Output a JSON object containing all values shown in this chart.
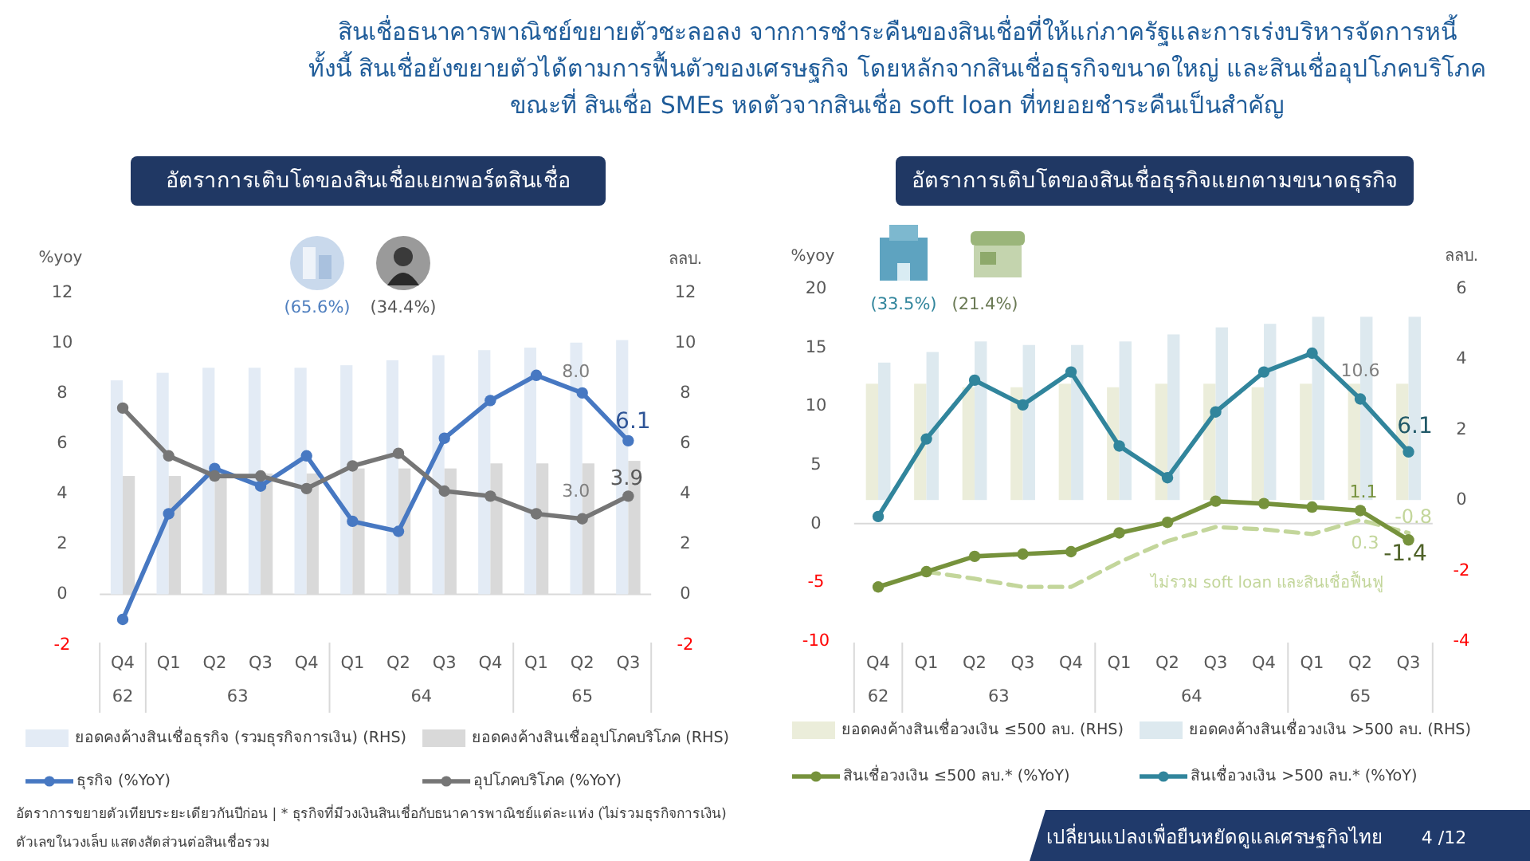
{
  "chart_data": [
    {
      "type": "other",
      "title": "สินเชื่อธนาคารพาณิชย์ขยายตัวชะลอลง จากการชำระคืนของสินเชื่อที่ให้แก่ภาครัฐและการเร่งบริหารจัดการหนี้\nทั้งนี้ สินเชื่อยังขยายตัวได้ตามการฟื้นตัวของเศรษฐกิจ โดยหลักจากสินเชื่อธุรกิจขนาดใหญ่ และสินเชื่ออุปโภคบริโภค\nขณะที่ สินเชื่อ SMEs หดตัวจากสินเชื่อ soft loan ที่ทยอยชำระคืนเป็นสำคัญ",
      "annotations": [
        "อัตราการขยายตัวเทียบระยะเดียวกันปีก่อน | * ธุรกิจที่มีวงเงินสินเชื่อกับธนาคารพาณิชย์แต่ละแห่ง (ไม่รวมธุรกิจการเงิน)",
        "ตัวเลขในวงเล็บ แสดงสัดส่วนต่อสินเชื่อรวม",
        "เปลี่ยนแปลงเพื่อยืนหยัดดูแลเศรษฐกิจไทย",
        "4 /12"
      ]
    },
    {
      "type": "line",
      "title": "อัตราการเติบโตของสินเชื่อแยกพอร์ตสินเชื่อ",
      "ylabel": "%yoy",
      "y2label": "ลลบ.",
      "categories": [
        "Q4",
        "Q1",
        "Q2",
        "Q3",
        "Q4",
        "Q1",
        "Q2",
        "Q3",
        "Q4",
        "Q1",
        "Q2",
        "Q3"
      ],
      "ylim": [
        -2,
        12
      ],
      "yticks": [
        -2,
        0,
        2,
        4,
        6,
        8,
        10,
        12
      ],
      "y2lim": [
        -2,
        12
      ],
      "y2ticks": [
        -2,
        0,
        2,
        4,
        6,
        8,
        10,
        12
      ],
      "marker": "circle",
      "line_style": "solid",
      "legend": "bottom",
      "series": [
        {
          "name": "ยอดคงค้างสินเชื่อธุรกิจ (รวมธุรกิจการเงิน) (RHS)",
          "type": "bar",
          "axis": "y2",
          "color": "#e3ebf5",
          "values": [
            8.5,
            8.8,
            9.0,
            9.0,
            9.0,
            9.1,
            9.3,
            9.5,
            9.7,
            9.8,
            10.0,
            10.1
          ]
        },
        {
          "name": "ยอดคงค้างสินเชื่ออุปโภคบริโภค (RHS)",
          "type": "bar",
          "axis": "y2",
          "color": "#d9d9d9",
          "values": [
            4.7,
            4.7,
            4.7,
            4.8,
            4.8,
            5.0,
            5.0,
            5.0,
            5.2,
            5.2,
            5.2,
            5.3
          ]
        },
        {
          "name": "ธุรกิจ (%YoY)",
          "type": "line",
          "color": "#4778c2",
          "values": [
            -1.0,
            3.2,
            5.0,
            4.3,
            5.5,
            2.9,
            2.5,
            6.2,
            7.7,
            8.7,
            8.0,
            6.1
          ],
          "value_labels": [
            null,
            null,
            null,
            null,
            null,
            null,
            null,
            null,
            null,
            null,
            "8.0",
            "6.1"
          ]
        },
        {
          "name": "อุปโภคบริโภค (%YoY)",
          "type": "line",
          "color": "#767676",
          "values": [
            7.4,
            5.5,
            4.7,
            4.7,
            4.2,
            5.1,
            5.6,
            4.1,
            3.9,
            3.2,
            3.0,
            3.9
          ],
          "value_labels": [
            null,
            null,
            null,
            null,
            null,
            null,
            null,
            null,
            null,
            null,
            "3.0",
            "3.9"
          ]
        }
      ],
      "annotations": [
        "(65.6%)",
        "(34.4%)",
        "62",
        "63",
        "64",
        "65"
      ]
    },
    {
      "type": "line",
      "title": "อัตราการเติบโตของสินเชื่อธุรกิจแยกตามขนาดธุรกิจ",
      "ylabel": "%yoy",
      "y2label": "ลลบ.",
      "categories": [
        "Q4",
        "Q1",
        "Q2",
        "Q3",
        "Q4",
        "Q1",
        "Q2",
        "Q3",
        "Q4",
        "Q1",
        "Q2",
        "Q3"
      ],
      "ylim": [
        -10,
        20
      ],
      "yticks": [
        -10,
        -5,
        0,
        5,
        10,
        15,
        20
      ],
      "y2lim": [
        -4,
        6
      ],
      "y2ticks": [
        -4,
        -2,
        0,
        2,
        4,
        6
      ],
      "marker": "circle",
      "line_style": "solid",
      "legend": "bottom",
      "series": [
        {
          "name": "ยอดคงค้างสินเชื่อวงเงิน ≤500 ลบ. (RHS)",
          "type": "bar",
          "axis": "y2",
          "color": "#ebedda",
          "values": [
            3.3,
            3.3,
            3.2,
            3.2,
            3.3,
            3.2,
            3.3,
            3.3,
            3.2,
            3.3,
            3.3,
            3.3
          ]
        },
        {
          "name": "ยอดคงค้างสินเชื่อวงเงิน >500 ลบ. (RHS)",
          "type": "bar",
          "axis": "y2",
          "color": "#dde9ef",
          "values": [
            3.9,
            4.2,
            4.5,
            4.4,
            4.4,
            4.5,
            4.7,
            4.9,
            5.0,
            5.2,
            5.2,
            5.2
          ]
        },
        {
          "name": "ไม่รวม soft loan และสินเชื่อฟื้นฟู",
          "type": "line",
          "color": "#c3d69b",
          "marker": "none",
          "line_style": "dashed",
          "values": [
            null,
            -4.1,
            -4.7,
            -5.4,
            -5.4,
            -3.3,
            -1.5,
            -0.3,
            -0.5,
            -0.9,
            0.3,
            -0.8
          ],
          "value_labels": [
            null,
            null,
            null,
            null,
            null,
            null,
            null,
            null,
            null,
            null,
            "0.3",
            "-0.8"
          ]
        },
        {
          "name": "สินเชื่อวงเงิน ≤500 ลบ.* (%YoY)",
          "type": "line",
          "color": "#76923c",
          "values": [
            -5.4,
            -4.1,
            -2.8,
            -2.6,
            -2.4,
            -0.8,
            0.1,
            1.9,
            1.7,
            1.4,
            1.1,
            -1.4
          ],
          "value_labels": [
            null,
            null,
            null,
            null,
            null,
            null,
            null,
            null,
            null,
            null,
            "1.1",
            "-1.4"
          ]
        },
        {
          "name": "สินเชื่อวงเงิน >500 ลบ.* (%YoY)",
          "type": "line",
          "color": "#31859c",
          "values": [
            0.6,
            7.2,
            12.2,
            10.1,
            12.9,
            6.6,
            3.9,
            9.5,
            12.9,
            14.5,
            10.6,
            6.1
          ],
          "value_labels": [
            null,
            null,
            null,
            null,
            null,
            null,
            null,
            null,
            null,
            null,
            "10.6",
            "6.1"
          ]
        }
      ],
      "annotations": [
        "(33.5%)",
        "(21.4%)",
        "62",
        "63",
        "64",
        "65"
      ]
    }
  ]
}
